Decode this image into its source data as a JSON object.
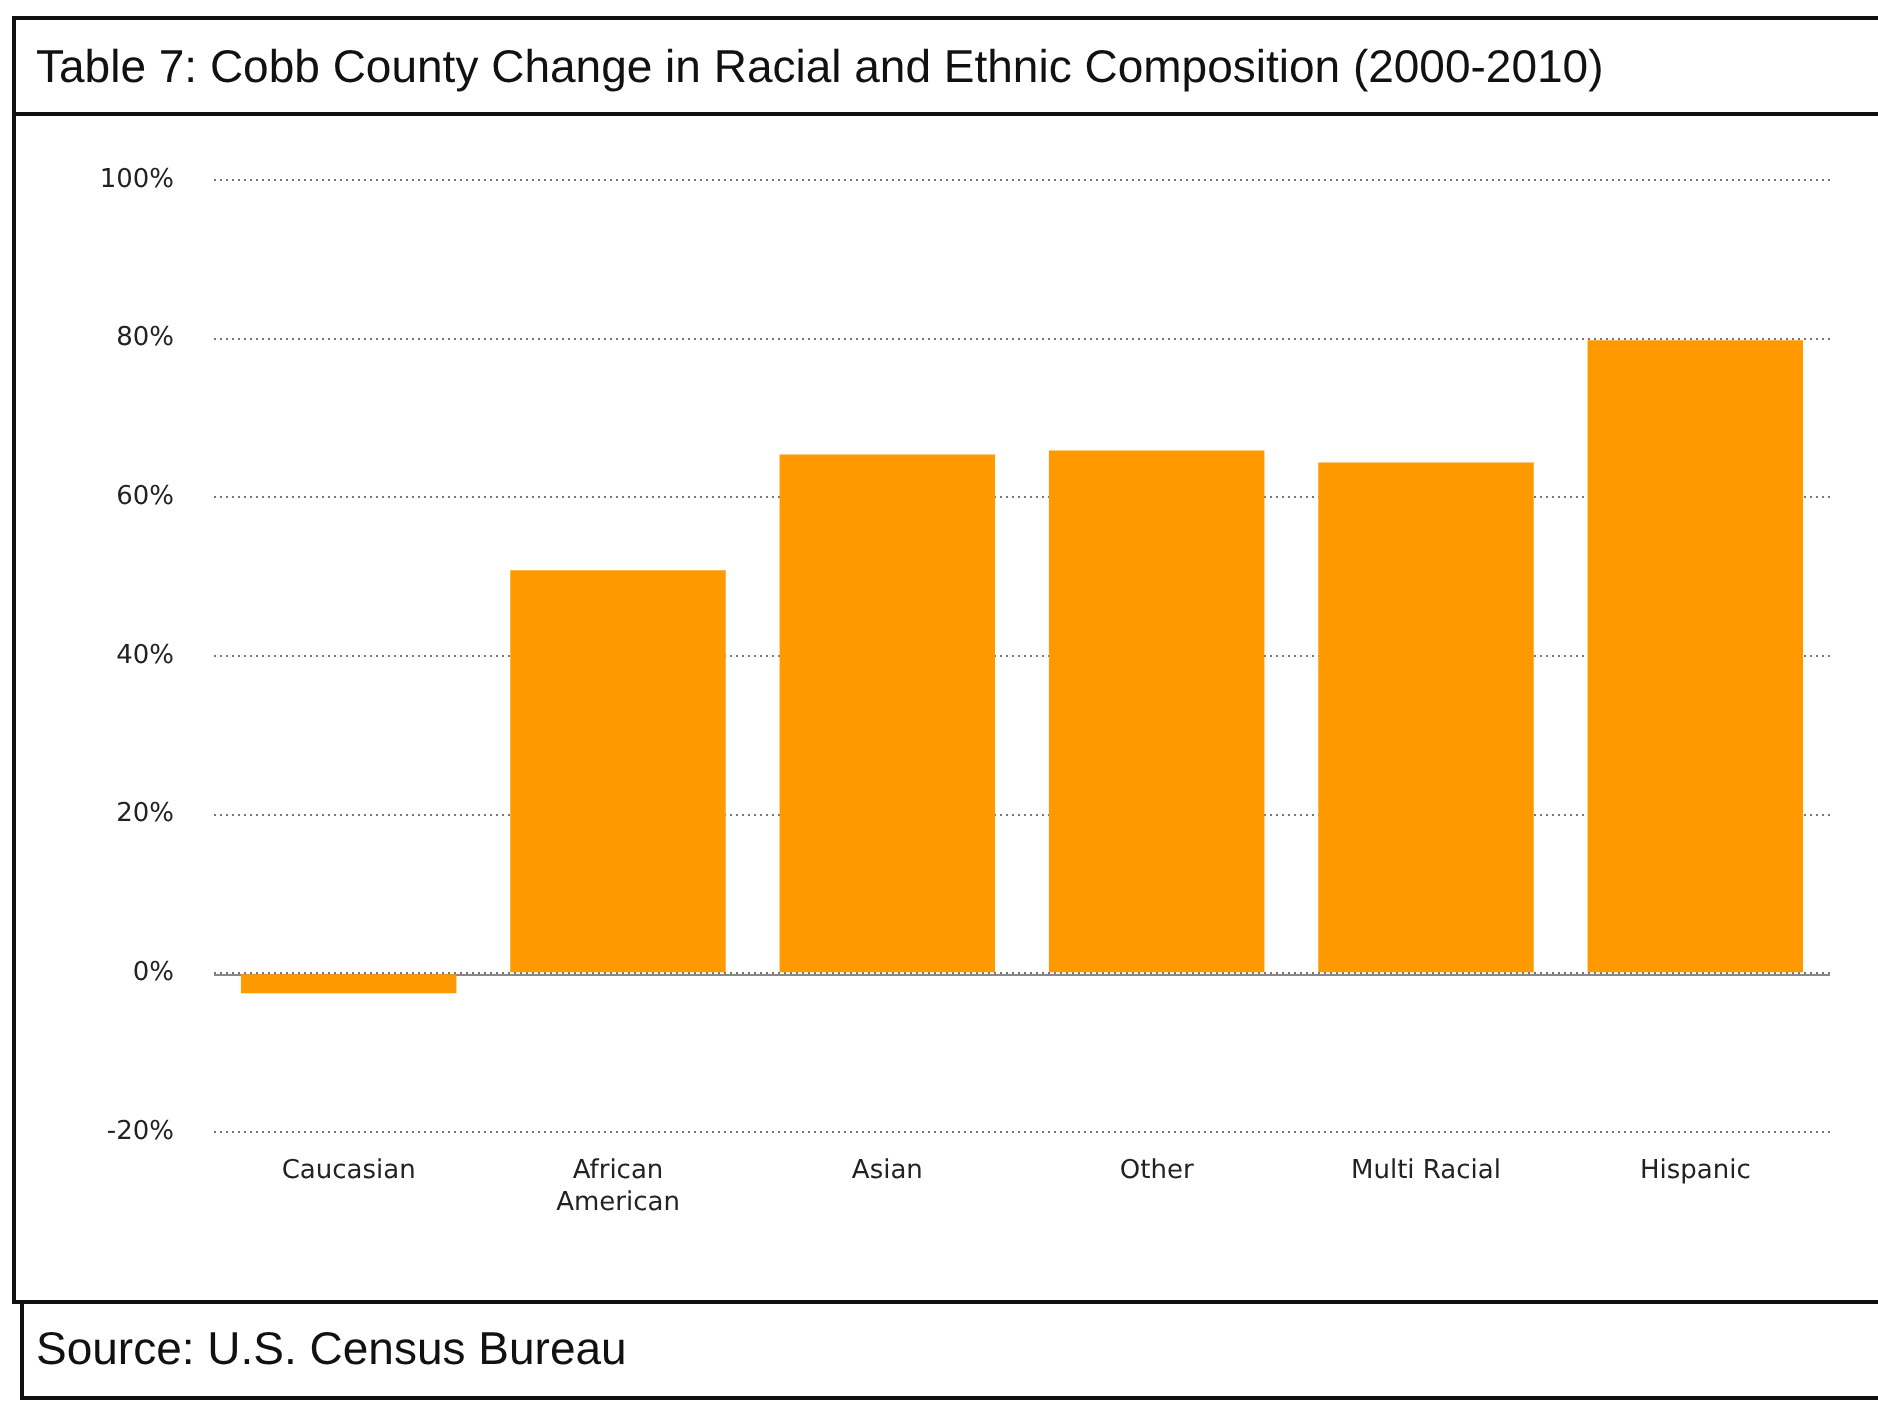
{
  "chart_data": {
    "type": "bar",
    "title": "Table 7: Cobb County Change in Racial and Ethnic Composition (2000-2010)",
    "categories": [
      "Caucasian",
      "African American",
      "Asian",
      "Other",
      "Multi Racial",
      "Hispanic"
    ],
    "values": [
      -2.5,
      50.8,
      65.4,
      65.9,
      64.4,
      79.8
    ],
    "color": "#ff9900",
    "ylim": [
      -20,
      100
    ],
    "yticks": [
      {
        "value": -20,
        "label": "-20%"
      },
      {
        "value": 0,
        "label": "0%"
      },
      {
        "value": 20,
        "label": "20%"
      },
      {
        "value": 40,
        "label": "40%"
      },
      {
        "value": 60,
        "label": "60%"
      },
      {
        "value": 80,
        "label": "80%"
      },
      {
        "value": 100,
        "label": "100%"
      }
    ],
    "grid": "y",
    "annotations": [
      "Source: U.S. Census Bureau"
    ]
  }
}
